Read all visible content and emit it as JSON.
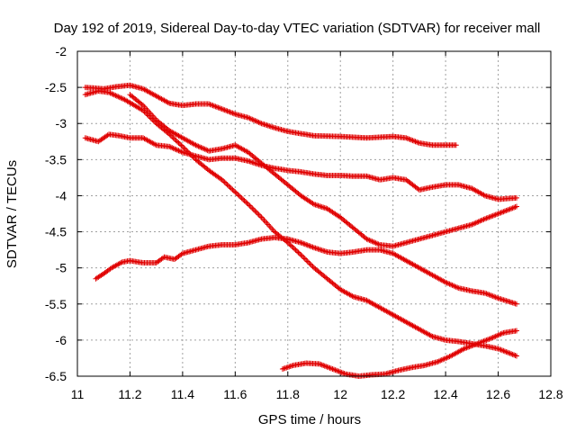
{
  "chart_data": {
    "type": "scatter",
    "title": "Day 192 of 2019, Sidereal Day-to-day VTEC variation (SDTVAR) for receiver mall",
    "xlabel": "GPS time / hours",
    "ylabel": "SDTVAR / TECUs",
    "xlim": [
      11,
      12.8
    ],
    "ylim": [
      -6.5,
      -2
    ],
    "xticks": [
      "11",
      "11.2",
      "11.4",
      "11.6",
      "11.8",
      "12",
      "12.2",
      "12.4",
      "12.6",
      "12.8"
    ],
    "yticks": [
      "-2",
      "-2.5",
      "-3",
      "-3.5",
      "-4",
      "-4.5",
      "-5",
      "-5.5",
      "-6",
      "-6.5"
    ],
    "grid": true,
    "marker": "+",
    "color": "#e00000",
    "series": [
      {
        "name": "s1",
        "points": [
          [
            11.03,
            -2.5
          ],
          [
            11.1,
            -2.52
          ],
          [
            11.15,
            -2.49
          ],
          [
            11.2,
            -2.47
          ],
          [
            11.25,
            -2.52
          ],
          [
            11.3,
            -2.62
          ],
          [
            11.35,
            -2.72
          ],
          [
            11.4,
            -2.75
          ],
          [
            11.45,
            -2.73
          ],
          [
            11.5,
            -2.73
          ],
          [
            11.55,
            -2.8
          ],
          [
            11.6,
            -2.87
          ],
          [
            11.65,
            -2.92
          ],
          [
            11.7,
            -3.0
          ],
          [
            11.75,
            -3.06
          ],
          [
            11.8,
            -3.11
          ],
          [
            11.85,
            -3.14
          ],
          [
            11.9,
            -3.17
          ],
          [
            12.0,
            -3.18
          ],
          [
            12.1,
            -3.2
          ],
          [
            12.2,
            -3.18
          ],
          [
            12.25,
            -3.2
          ],
          [
            12.3,
            -3.27
          ],
          [
            12.35,
            -3.3
          ],
          [
            12.44,
            -3.3
          ]
        ]
      },
      {
        "name": "s2",
        "points": [
          [
            11.03,
            -2.6
          ],
          [
            11.08,
            -2.55
          ],
          [
            11.12,
            -2.57
          ],
          [
            11.18,
            -2.67
          ],
          [
            11.25,
            -2.82
          ],
          [
            11.3,
            -3.0
          ],
          [
            11.35,
            -3.15
          ],
          [
            11.4,
            -3.32
          ],
          [
            11.45,
            -3.5
          ],
          [
            11.5,
            -3.65
          ],
          [
            11.55,
            -3.78
          ],
          [
            11.6,
            -3.95
          ],
          [
            11.65,
            -4.12
          ],
          [
            11.7,
            -4.3
          ],
          [
            11.75,
            -4.5
          ],
          [
            11.8,
            -4.65
          ],
          [
            11.85,
            -4.82
          ],
          [
            11.9,
            -5.0
          ],
          [
            11.95,
            -5.15
          ],
          [
            12.0,
            -5.3
          ],
          [
            12.05,
            -5.4
          ],
          [
            12.1,
            -5.45
          ],
          [
            12.15,
            -5.55
          ],
          [
            12.2,
            -5.65
          ],
          [
            12.25,
            -5.75
          ],
          [
            12.3,
            -5.85
          ],
          [
            12.35,
            -5.95
          ],
          [
            12.4,
            -6.0
          ],
          [
            12.45,
            -6.02
          ],
          [
            12.5,
            -6.05
          ],
          [
            12.55,
            -6.08
          ],
          [
            12.6,
            -6.12
          ],
          [
            12.67,
            -6.22
          ]
        ]
      },
      {
        "name": "s3",
        "points": [
          [
            11.03,
            -3.2
          ],
          [
            11.08,
            -3.25
          ],
          [
            11.12,
            -3.15
          ],
          [
            11.16,
            -3.17
          ],
          [
            11.2,
            -3.2
          ],
          [
            11.25,
            -3.2
          ],
          [
            11.3,
            -3.3
          ],
          [
            11.35,
            -3.32
          ],
          [
            11.4,
            -3.4
          ],
          [
            11.45,
            -3.45
          ],
          [
            11.5,
            -3.5
          ],
          [
            11.55,
            -3.48
          ],
          [
            11.6,
            -3.48
          ],
          [
            11.65,
            -3.52
          ],
          [
            11.7,
            -3.58
          ],
          [
            11.75,
            -3.62
          ],
          [
            11.8,
            -3.65
          ],
          [
            11.85,
            -3.67
          ],
          [
            11.9,
            -3.7
          ],
          [
            11.95,
            -3.72
          ],
          [
            12.0,
            -3.72
          ],
          [
            12.05,
            -3.73
          ],
          [
            12.1,
            -3.73
          ],
          [
            12.15,
            -3.78
          ],
          [
            12.2,
            -3.75
          ],
          [
            12.25,
            -3.78
          ],
          [
            12.3,
            -3.92
          ],
          [
            12.35,
            -3.88
          ],
          [
            12.4,
            -3.85
          ],
          [
            12.45,
            -3.85
          ],
          [
            12.5,
            -3.9
          ],
          [
            12.55,
            -4.0
          ],
          [
            12.6,
            -4.05
          ],
          [
            12.67,
            -4.03
          ]
        ]
      },
      {
        "name": "s4",
        "points": [
          [
            11.07,
            -5.15
          ],
          [
            11.1,
            -5.08
          ],
          [
            11.13,
            -5.0
          ],
          [
            11.17,
            -4.92
          ],
          [
            11.2,
            -4.9
          ],
          [
            11.25,
            -4.93
          ],
          [
            11.3,
            -4.93
          ],
          [
            11.33,
            -4.85
          ],
          [
            11.37,
            -4.88
          ],
          [
            11.4,
            -4.8
          ],
          [
            11.45,
            -4.75
          ],
          [
            11.5,
            -4.7
          ],
          [
            11.55,
            -4.68
          ],
          [
            11.6,
            -4.68
          ],
          [
            11.65,
            -4.65
          ],
          [
            11.7,
            -4.6
          ],
          [
            11.75,
            -4.58
          ],
          [
            11.8,
            -4.6
          ],
          [
            11.85,
            -4.65
          ],
          [
            11.9,
            -4.72
          ],
          [
            11.95,
            -4.78
          ],
          [
            12.0,
            -4.8
          ],
          [
            12.05,
            -4.78
          ],
          [
            12.1,
            -4.75
          ],
          [
            12.15,
            -4.75
          ],
          [
            12.2,
            -4.8
          ],
          [
            12.25,
            -4.9
          ],
          [
            12.3,
            -5.0
          ],
          [
            12.35,
            -5.1
          ],
          [
            12.4,
            -5.2
          ],
          [
            12.45,
            -5.28
          ],
          [
            12.5,
            -5.32
          ],
          [
            12.55,
            -5.35
          ],
          [
            12.6,
            -5.42
          ],
          [
            12.67,
            -5.5
          ]
        ]
      },
      {
        "name": "s5",
        "points": [
          [
            11.2,
            -2.6
          ],
          [
            11.25,
            -2.75
          ],
          [
            11.3,
            -2.95
          ],
          [
            11.35,
            -3.1
          ],
          [
            11.4,
            -3.2
          ],
          [
            11.45,
            -3.3
          ],
          [
            11.5,
            -3.38
          ],
          [
            11.55,
            -3.35
          ],
          [
            11.6,
            -3.3
          ],
          [
            11.65,
            -3.4
          ],
          [
            11.7,
            -3.55
          ],
          [
            11.75,
            -3.7
          ],
          [
            11.8,
            -3.85
          ],
          [
            11.85,
            -4.0
          ],
          [
            11.9,
            -4.12
          ],
          [
            11.95,
            -4.18
          ],
          [
            12.0,
            -4.3
          ],
          [
            12.05,
            -4.45
          ],
          [
            12.1,
            -4.6
          ],
          [
            12.15,
            -4.68
          ],
          [
            12.2,
            -4.7
          ],
          [
            12.25,
            -4.65
          ],
          [
            12.3,
            -4.6
          ],
          [
            12.35,
            -4.55
          ],
          [
            12.4,
            -4.5
          ],
          [
            12.45,
            -4.45
          ],
          [
            12.5,
            -4.4
          ],
          [
            12.55,
            -4.32
          ],
          [
            12.6,
            -4.25
          ],
          [
            12.67,
            -4.15
          ]
        ]
      },
      {
        "name": "s6",
        "points": [
          [
            11.78,
            -6.4
          ],
          [
            11.82,
            -6.35
          ],
          [
            11.87,
            -6.32
          ],
          [
            11.92,
            -6.33
          ],
          [
            11.97,
            -6.4
          ],
          [
            12.02,
            -6.47
          ],
          [
            12.07,
            -6.5
          ],
          [
            12.12,
            -6.48
          ],
          [
            12.17,
            -6.47
          ],
          [
            12.22,
            -6.42
          ],
          [
            12.27,
            -6.38
          ],
          [
            12.32,
            -6.35
          ],
          [
            12.37,
            -6.3
          ],
          [
            12.42,
            -6.22
          ],
          [
            12.47,
            -6.12
          ],
          [
            12.52,
            -6.05
          ],
          [
            12.57,
            -5.98
          ],
          [
            12.62,
            -5.9
          ],
          [
            12.67,
            -5.87
          ]
        ]
      }
    ]
  }
}
